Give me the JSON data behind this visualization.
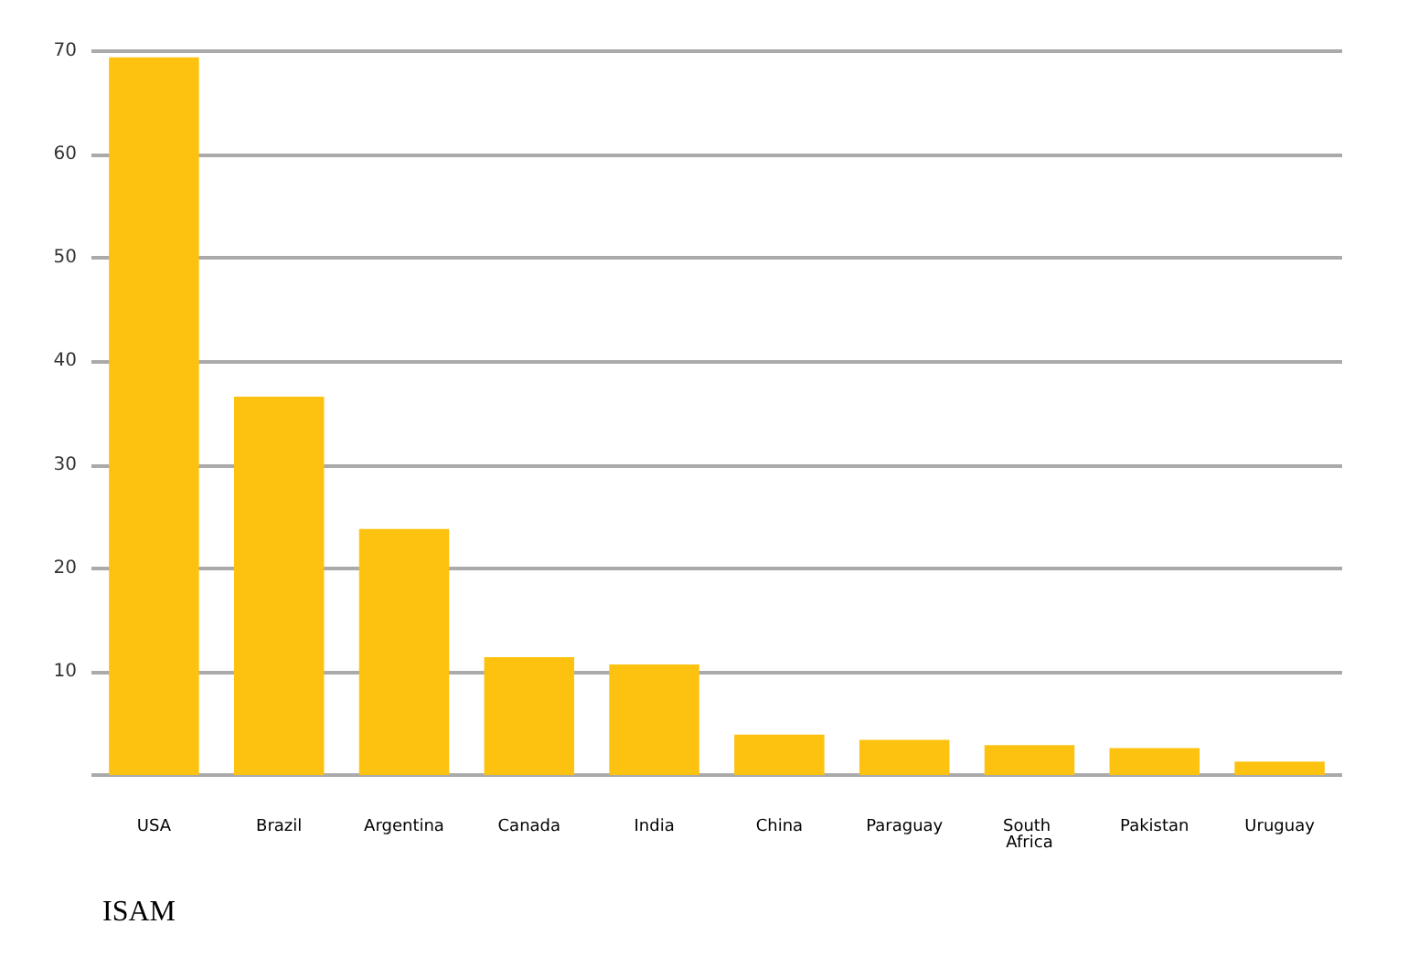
{
  "chart_data": {
    "type": "bar",
    "categories": [
      "USA",
      "Brazil",
      "Argentina",
      "Canada",
      "India",
      "China",
      "Paraguay",
      "South Africa",
      "Pakistan",
      "Uruguay"
    ],
    "values": [
      69.4,
      36.6,
      23.8,
      11.4,
      10.7,
      3.9,
      3.4,
      2.9,
      2.6,
      1.3
    ],
    "color": "#fdc20f",
    "ylim": [
      0,
      70
    ],
    "yticks": [
      10,
      20,
      30,
      40,
      50,
      60,
      70
    ],
    "grid": "y",
    "annotations": [
      "ISAM"
    ]
  }
}
